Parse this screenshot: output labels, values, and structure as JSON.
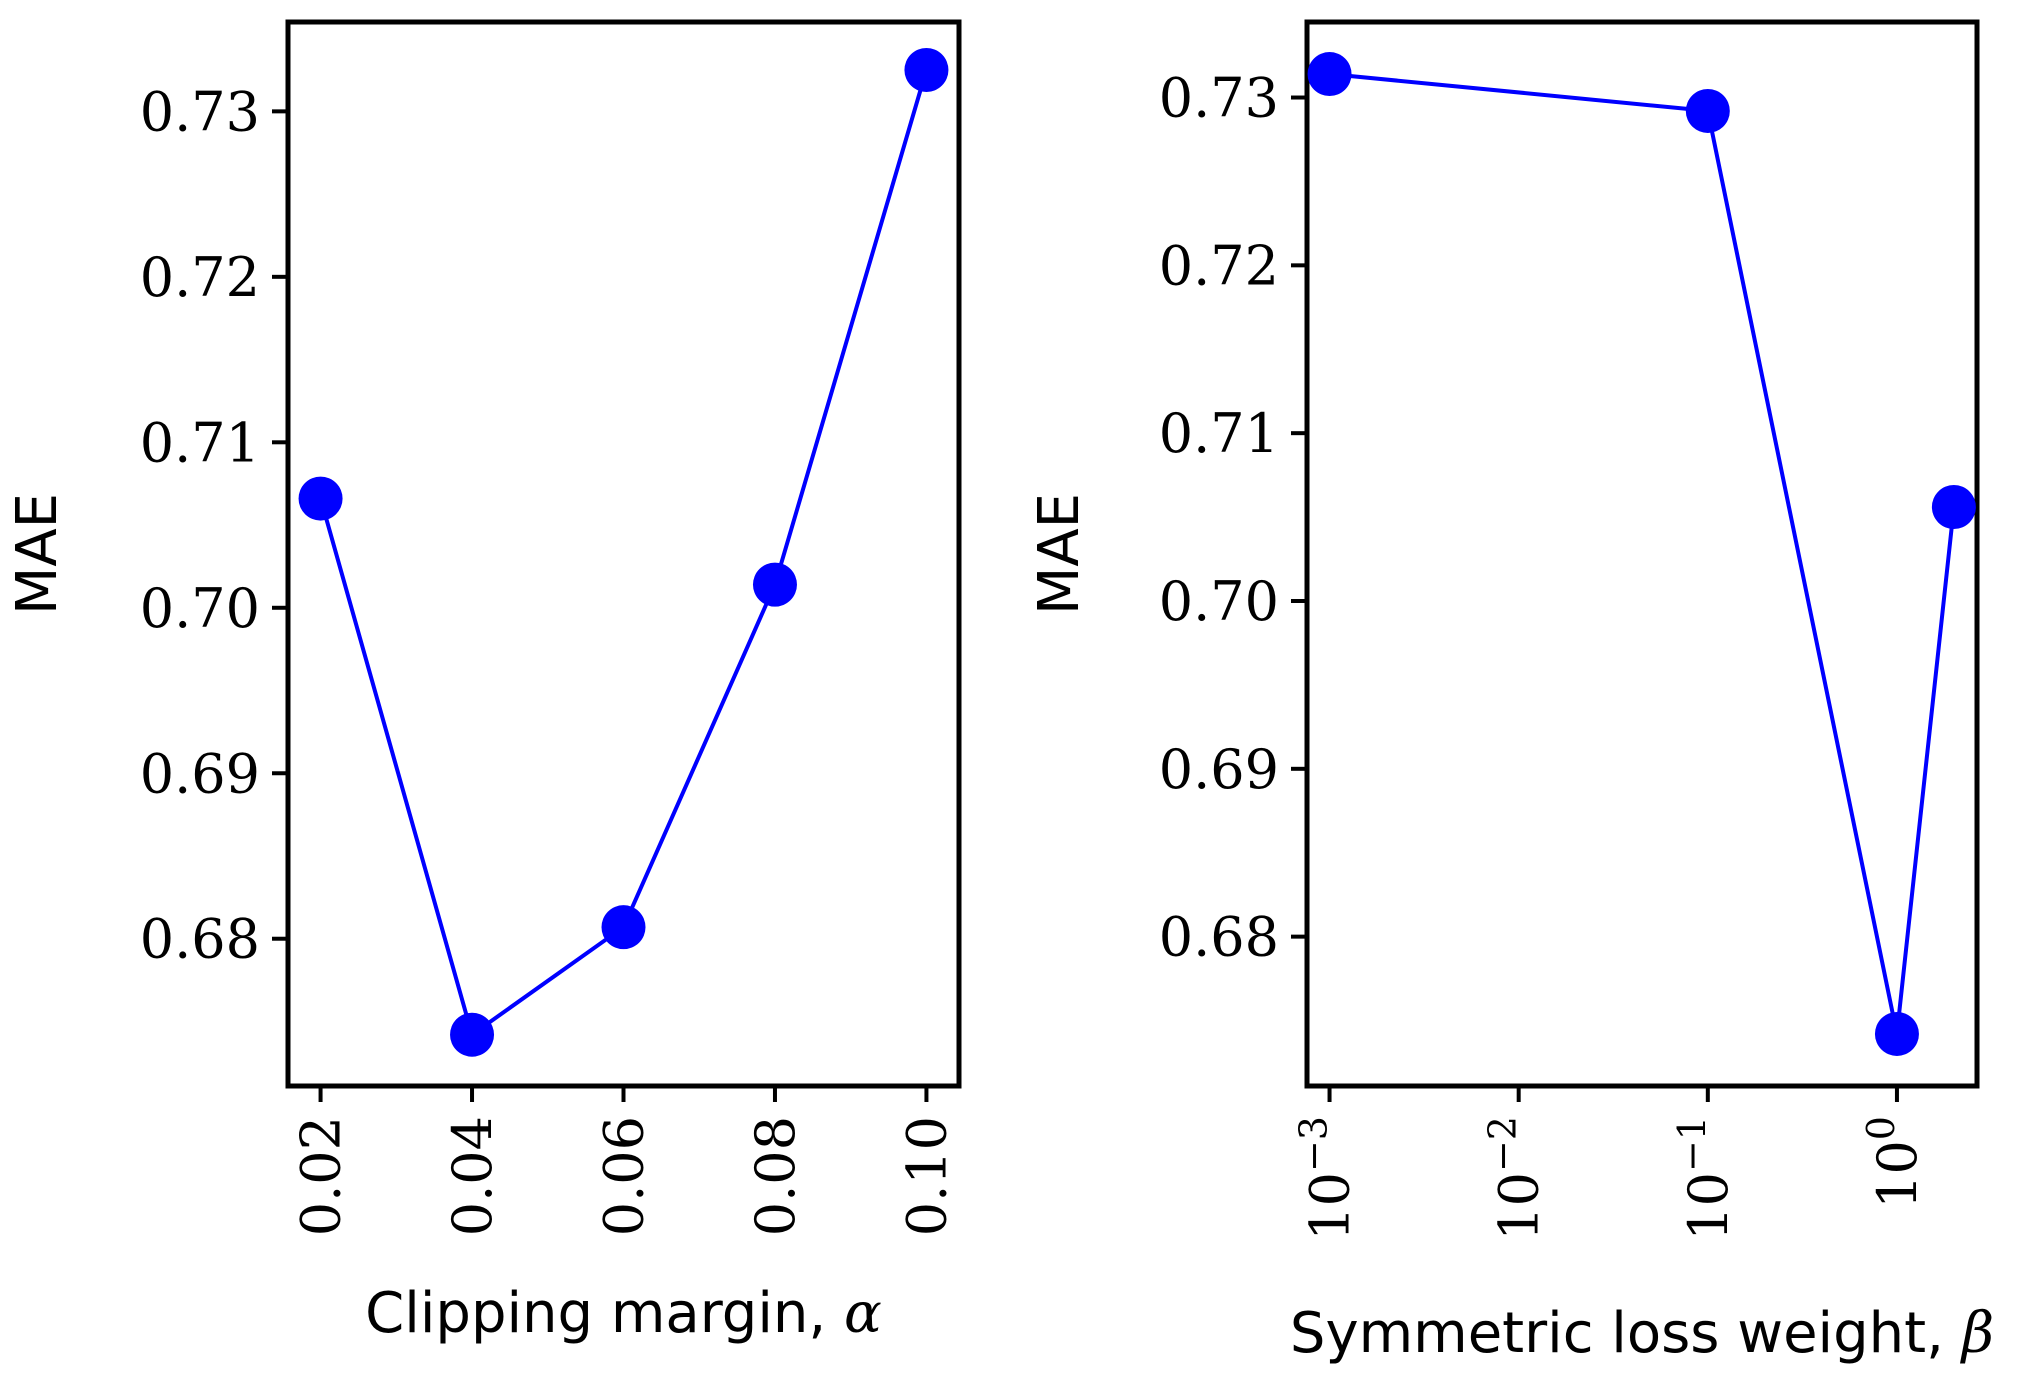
{
  "chart_data": [
    {
      "type": "line",
      "x": [
        0.02,
        0.04,
        0.06,
        0.08,
        0.1
      ],
      "y": [
        0.7066,
        0.6742,
        0.6807,
        0.7014,
        0.7325
      ],
      "xticks": [
        0.02,
        0.04,
        0.06,
        0.08,
        0.1
      ],
      "xtick_labels": [
        "0.02",
        "0.04",
        "0.06",
        "0.08",
        "0.10"
      ],
      "yticks": [
        0.68,
        0.69,
        0.7,
        0.71,
        0.72,
        0.73
      ],
      "ytick_labels": [
        "0.68",
        "0.69",
        "0.70",
        "0.71",
        "0.72",
        "0.73"
      ],
      "xlim": [
        0.0157,
        0.1043
      ],
      "ylim": [
        0.6711,
        0.7354
      ],
      "xscale": "linear",
      "xlabel": "Clipping margin, ",
      "xlabel_symbol": "α",
      "ylabel": "MAE",
      "color": "#0000ff",
      "marker": "circle",
      "grid": false
    },
    {
      "type": "line",
      "x": [
        0.001,
        0.1,
        1,
        2
      ],
      "y": [
        0.7314,
        0.7292,
        0.6742,
        0.7056
      ],
      "xticks": [
        0.001,
        0.01,
        0.1,
        1
      ],
      "xtick_labels": [
        {
          "base": "10",
          "exp": "−3"
        },
        {
          "base": "10",
          "exp": "−2"
        },
        {
          "base": "10",
          "exp": "−1"
        },
        {
          "base": "10",
          "exp": "0"
        }
      ],
      "yticks": [
        0.68,
        0.69,
        0.7,
        0.71,
        0.72,
        0.73
      ],
      "ytick_labels": [
        "0.68",
        "0.69",
        "0.70",
        "0.71",
        "0.72",
        "0.73"
      ],
      "xlim": [
        0.00076,
        2.65
      ],
      "ylim": [
        0.6711,
        0.7345
      ],
      "xscale": "log",
      "xlabel": "Symmetric loss weight, ",
      "xlabel_symbol": "β",
      "ylabel": "MAE",
      "color": "#0000ff",
      "marker": "circle",
      "grid": false
    }
  ]
}
